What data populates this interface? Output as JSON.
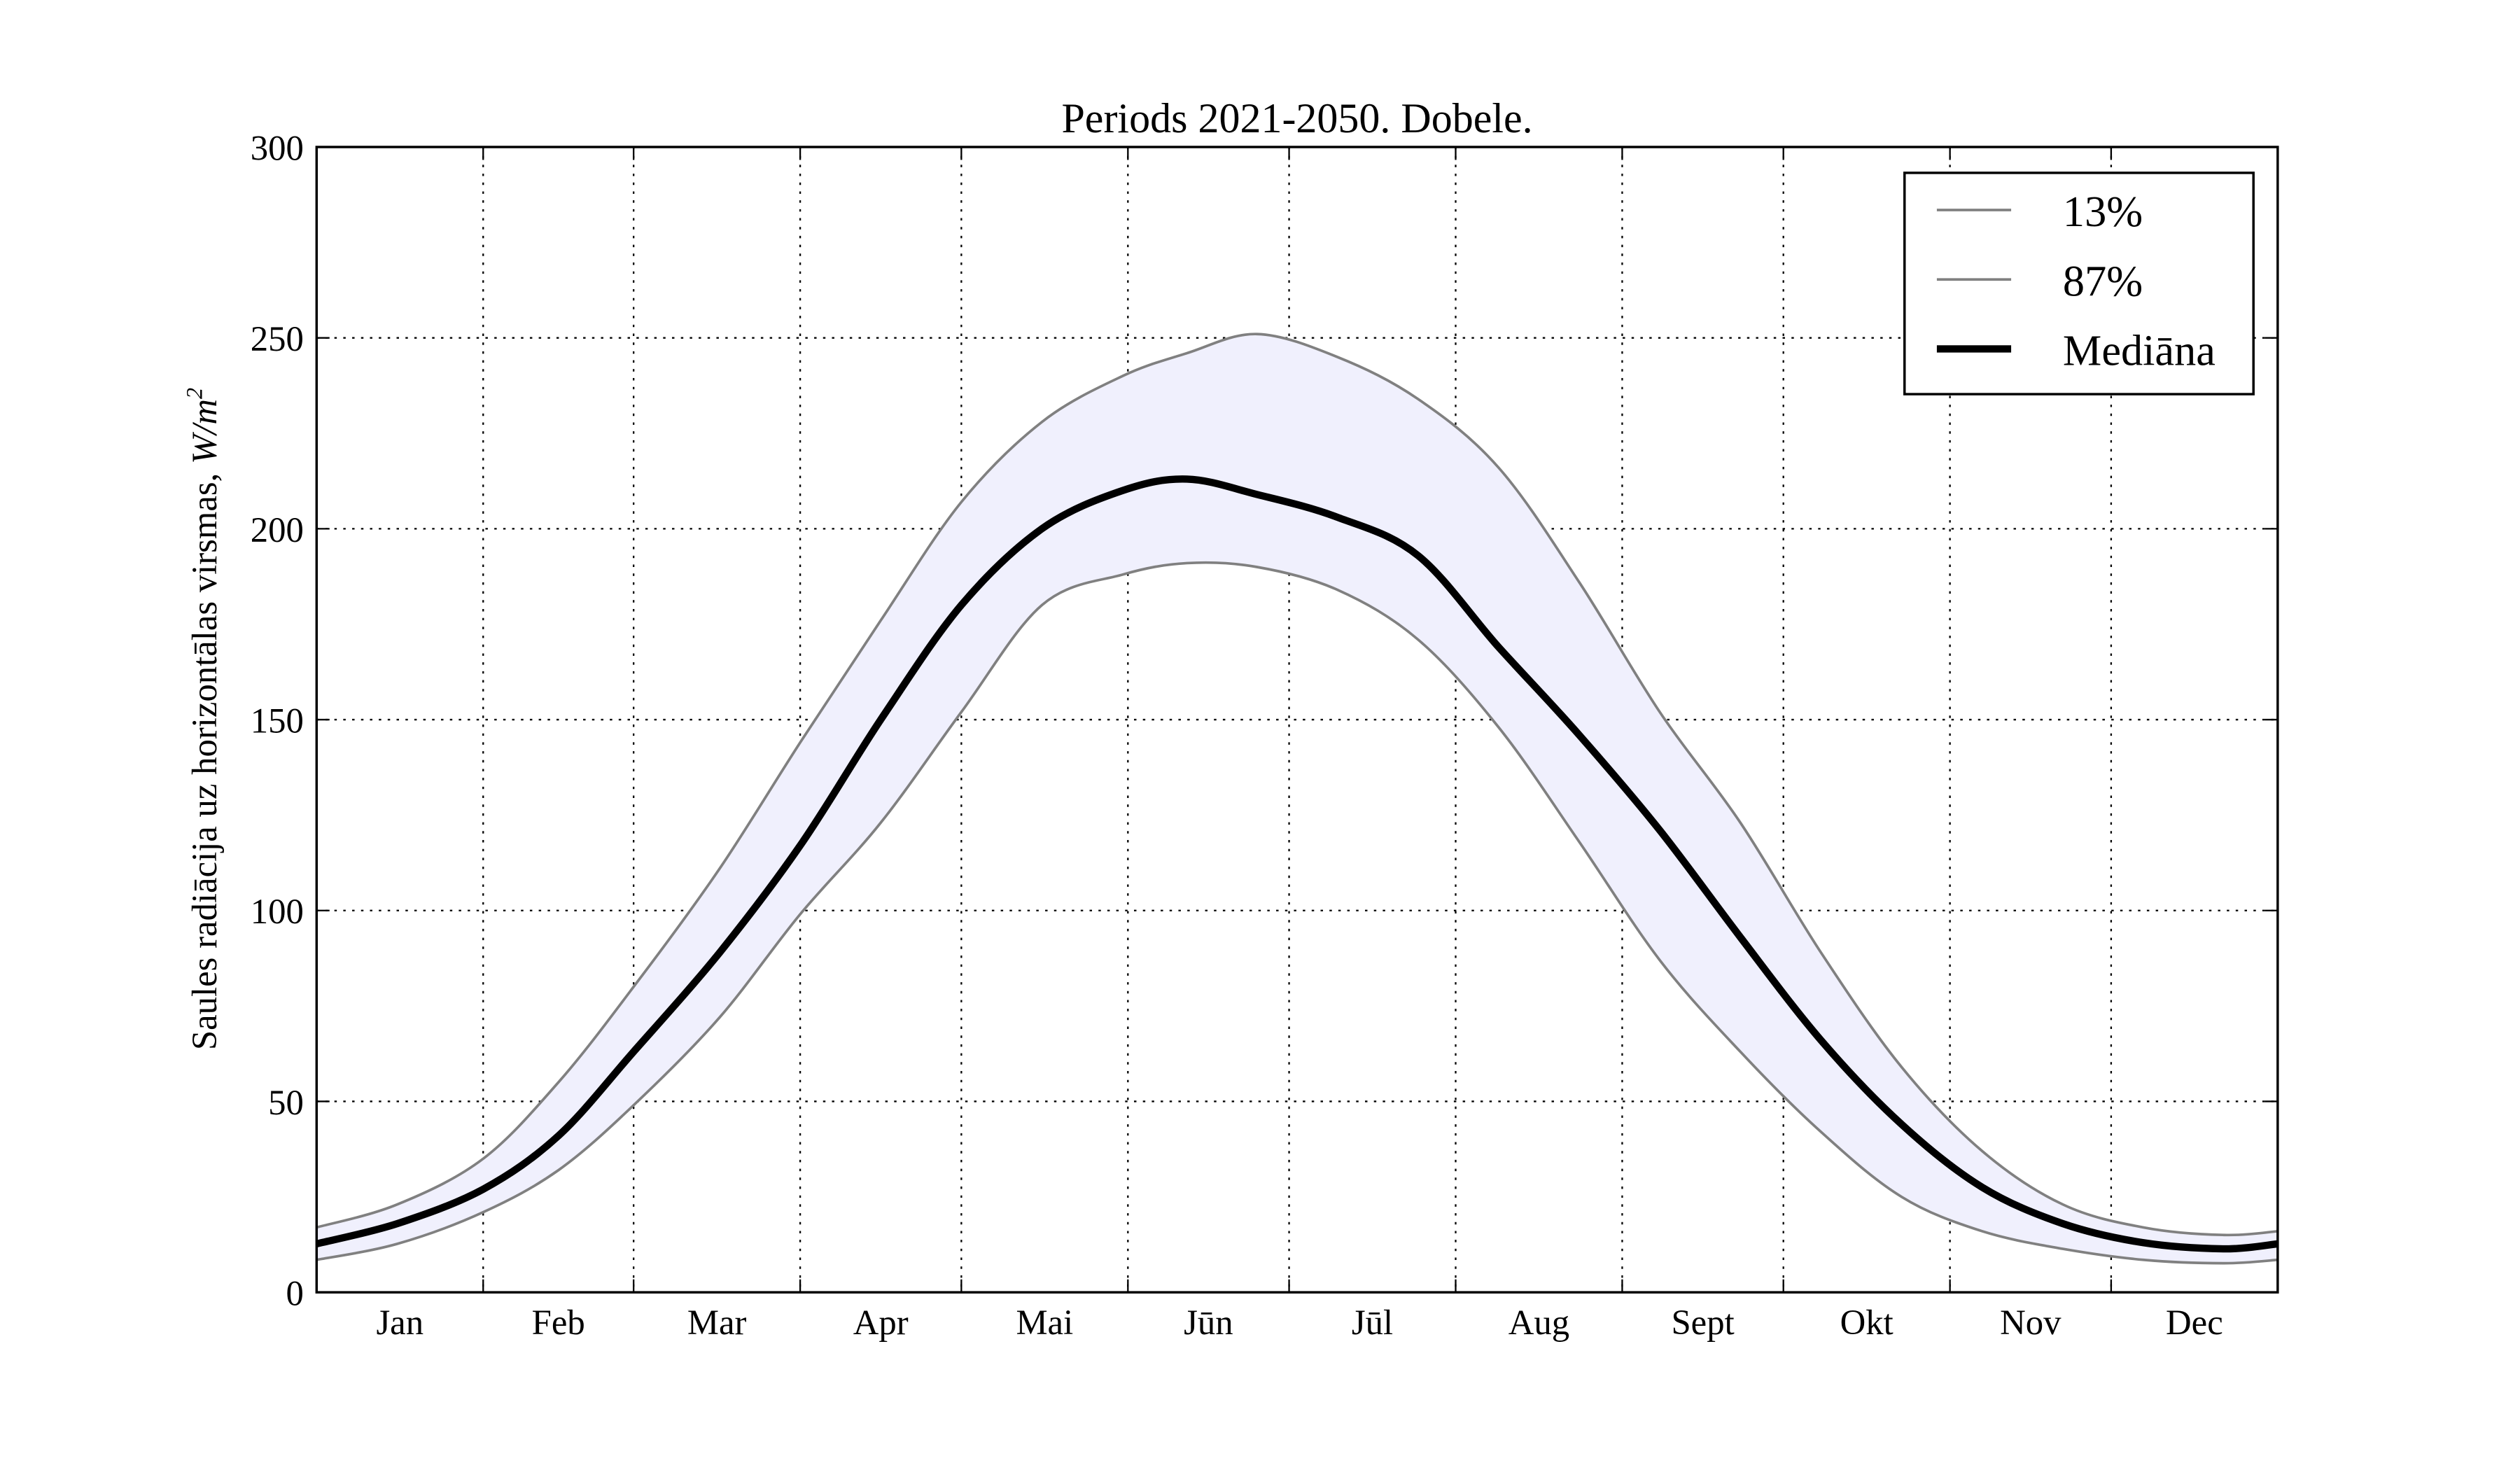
{
  "chart_data": {
    "type": "area",
    "title": "Periods 2021-2050. Dobele.",
    "xlabel": "",
    "ylabel": "Saules radiācija uz horizontālas virsmas, W/m²",
    "ylabel_text": "Saules radiācija uz horizontālas virsmas, ",
    "ylabel_unit": "W/m",
    "ylabel_unit_sup": "2",
    "xlim": [
      0,
      365
    ],
    "ylim": [
      0,
      300
    ],
    "yticks": [
      0,
      50,
      100,
      150,
      200,
      250,
      300
    ],
    "month_labels": [
      "Jan",
      "Feb",
      "Mar",
      "Apr",
      "Mai",
      "Jūn",
      "Jūl",
      "Aug",
      "Sept",
      "Okt",
      "Nov",
      "Dec"
    ],
    "month_boundaries_day": [
      0,
      31,
      59,
      90,
      120,
      151,
      181,
      212,
      243,
      273,
      304,
      334,
      365
    ],
    "grid": true,
    "legend_position": "top-right",
    "fill_color": "#f0f0fd",
    "x_day": [
      0,
      15,
      31,
      45,
      59,
      75,
      90,
      105,
      120,
      135,
      150,
      162,
      175,
      190,
      205,
      220,
      235,
      250,
      265,
      280,
      295,
      310,
      325,
      340,
      355,
      365
    ],
    "series": [
      {
        "name": "13%",
        "color": "#808080",
        "values": [
          8.5,
          12.7,
          21,
          32,
          49,
          72,
          99,
          123,
          152,
          180,
          188,
          191,
          190,
          184,
          171,
          148,
          118,
          87,
          63,
          42,
          25,
          16,
          11.4,
          8.5,
          7.6,
          8.5
        ]
      },
      {
        "name": "87%",
        "color": "#808080",
        "values": [
          17,
          23,
          35,
          55,
          80,
          111,
          144,
          176,
          207,
          228,
          240,
          246,
          251,
          245,
          234,
          216,
          186,
          152,
          123,
          89,
          59,
          37,
          23,
          17,
          15,
          16
        ]
      },
      {
        "name": "Mediāna",
        "color": "#000000",
        "values": [
          12.7,
          18,
          27,
          41,
          63,
          89,
          117,
          150,
          180,
          200,
          210,
          213,
          209,
          203,
          193,
          169,
          146,
          121,
          93,
          66,
          44,
          27.5,
          18,
          13,
          11.4,
          12.7
        ]
      }
    ]
  }
}
